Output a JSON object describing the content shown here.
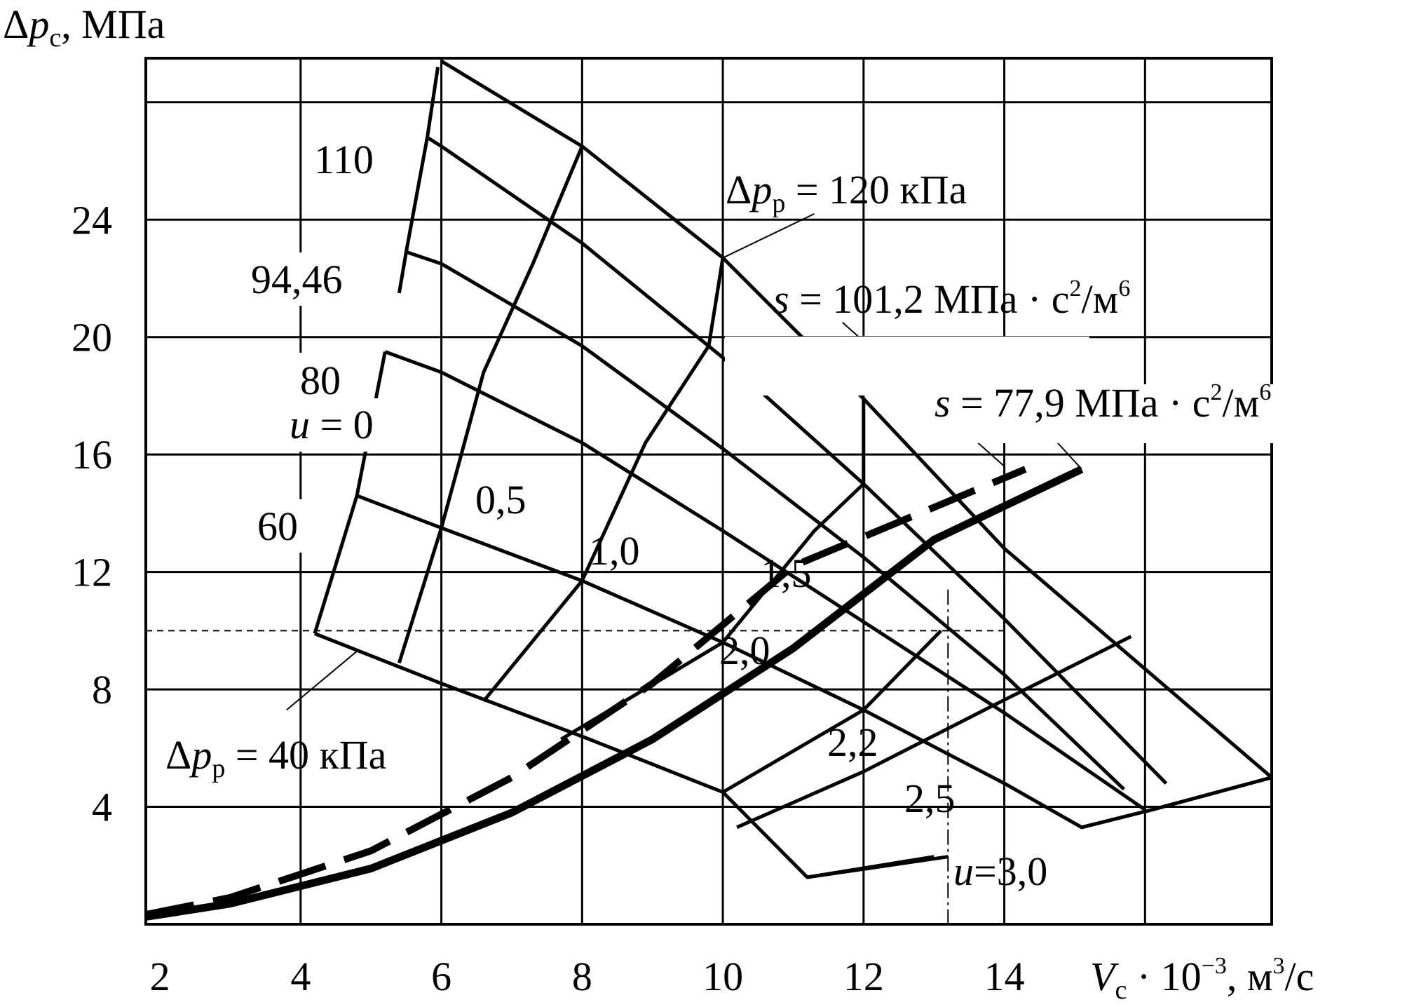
{
  "chart_data": {
    "type": "line",
    "title": "",
    "ylabel": {
      "symbol": "Δp",
      "sub": "с",
      "unit": ", МПа"
    },
    "xlabel": {
      "symbol": "V",
      "sub": "с",
      "mid": " · 10",
      "sup": "−3",
      "unit": ", м",
      "unit_sup": "3",
      "unit_end": "/с"
    },
    "xlim": [
      1.8,
      17.8
    ],
    "ylim": [
      0,
      29.5
    ],
    "grid": true,
    "x_ticks": [
      "2",
      "4",
      "6",
      "8",
      "10",
      "12",
      "14"
    ],
    "x_tick_values": [
      2,
      4,
      6,
      8,
      10,
      12,
      14
    ],
    "y_ticks": [
      "4",
      "8",
      "12",
      "16",
      "20",
      "24"
    ],
    "y_tick_values": [
      4,
      8,
      12,
      16,
      20,
      24
    ],
    "grid_y": [
      4,
      8,
      12,
      16,
      20,
      24,
      28
    ],
    "grid_x": [
      4,
      6,
      8,
      10,
      12,
      14,
      16,
      17.8
    ],
    "pressure_curves": [
      {
        "name": "Δpр = 40 кПа",
        "points": [
          [
            4.2,
            9.9
          ],
          [
            6,
            8.2
          ],
          [
            8,
            6.4
          ],
          [
            10,
            4.5
          ],
          [
            11.2,
            1.6
          ],
          [
            13.2,
            2.3
          ]
        ]
      },
      {
        "name": "60",
        "points": [
          [
            4.8,
            14.6
          ],
          [
            6,
            13.5
          ],
          [
            8,
            11.7
          ],
          [
            10,
            9.6
          ],
          [
            12,
            7.3
          ],
          [
            14,
            4.8
          ],
          [
            15.1,
            3.3
          ],
          [
            16.1,
            3.9
          ],
          [
            17.8,
            5.0
          ]
        ]
      },
      {
        "name": "80",
        "points": [
          [
            5.2,
            19.5
          ],
          [
            6,
            18.8
          ],
          [
            8,
            16.4
          ],
          [
            10,
            13.4
          ],
          [
            12,
            10.3
          ],
          [
            14,
            7.2
          ],
          [
            16,
            3.9
          ]
        ]
      },
      {
        "name": "94,46",
        "points": [
          [
            5.5,
            22.9
          ],
          [
            6,
            22.5
          ],
          [
            8,
            19.7
          ],
          [
            10,
            16.2
          ],
          [
            12,
            12.5
          ],
          [
            14,
            8.5
          ],
          [
            15.7,
            4.6
          ]
        ]
      },
      {
        "name": "110",
        "points": [
          [
            5.8,
            26.8
          ],
          [
            6,
            26.5
          ],
          [
            8,
            23.2
          ],
          [
            10,
            19.3
          ],
          [
            12,
            15.0
          ],
          [
            14,
            10.4
          ],
          [
            16.3,
            4.8
          ]
        ]
      },
      {
        "name": "Δpр = 120 кПа",
        "points": [
          [
            6,
            29.4
          ],
          [
            8,
            26.5
          ],
          [
            10,
            22.7
          ],
          [
            12,
            17.9
          ],
          [
            14,
            12.8
          ],
          [
            17.8,
            5.0
          ]
        ]
      }
    ],
    "u_curves": [
      {
        "name": "u = 0",
        "points": [
          [
            4.2,
            9.9
          ],
          [
            4.8,
            14.6
          ],
          [
            5.2,
            19.5
          ]
        ]
      },
      {
        "name": "u = 0 (upper)",
        "points": [
          [
            5.4,
            21.5
          ],
          [
            5.5,
            22.9
          ],
          [
            5.8,
            26.8
          ],
          [
            5.95,
            29.2
          ]
        ]
      },
      {
        "name": "0,5",
        "points": [
          [
            5.4,
            8.9
          ],
          [
            6,
            13.5
          ],
          [
            6.6,
            18.8
          ],
          [
            7.3,
            22.5
          ],
          [
            8,
            26.5
          ]
        ]
      },
      {
        "name": "1,0",
        "points": [
          [
            6.6,
            7.6
          ],
          [
            8,
            11.7
          ],
          [
            8.9,
            16.4
          ],
          [
            9.8,
            19.7
          ],
          [
            10,
            22.7
          ]
        ]
      },
      {
        "name": "1,5",
        "points": [
          [
            7.7,
            6.3
          ],
          [
            10,
            9.6
          ],
          [
            11.3,
            13.4
          ],
          [
            12,
            15.0
          ],
          [
            12,
            17.9
          ]
        ]
      },
      {
        "name": "2,0",
        "points": [
          [
            10,
            4.5
          ],
          [
            12,
            7.3
          ],
          [
            13.1,
            10.0
          ]
        ]
      },
      {
        "name": "2,2",
        "points": [
          [
            10.2,
            3.3
          ],
          [
            12,
            5.2
          ],
          [
            13.8,
            7.4
          ],
          [
            15.8,
            9.8
          ]
        ]
      },
      {
        "name": "2,5",
        "points": [
          [
            11.2,
            1.6
          ],
          [
            13,
            2.3
          ]
        ]
      },
      {
        "name": "u=3,0",
        "points": [
          [
            15.1,
            3.3
          ],
          [
            16.1,
            3.9
          ],
          [
            17.8,
            5.0
          ]
        ]
      }
    ],
    "system_curves": [
      {
        "name": "s = 77,9 МПа · с²/м⁶",
        "style": "solid-thick",
        "points": [
          [
            1.8,
            0.25
          ],
          [
            3,
            0.7
          ],
          [
            5,
            1.9
          ],
          [
            7,
            3.8
          ],
          [
            9,
            6.3
          ],
          [
            11,
            9.4
          ],
          [
            13,
            13.1
          ],
          [
            15.1,
            15.5
          ]
        ]
      },
      {
        "name": "s = 101,2 МПа · с²/м⁶",
        "style": "dashed-thick",
        "points": [
          [
            1.8,
            0.33
          ],
          [
            3,
            0.91
          ],
          [
            5,
            2.5
          ],
          [
            7,
            5.0
          ],
          [
            9,
            8.2
          ],
          [
            11,
            12.2
          ],
          [
            14.3,
            15.5
          ]
        ]
      }
    ],
    "operating_point": {
      "x": 13.2,
      "y": 10.0
    },
    "value_labels": [
      "110",
      "94,46",
      "80",
      "u = 0",
      "60",
      "0,5",
      "1,0",
      "1,5",
      "2,0",
      "2,2",
      "2,5",
      "u=3,0"
    ],
    "annotations": {
      "top_curve": {
        "symbol": "Δp",
        "sub": "р",
        "text": " = 120 кПа"
      },
      "bottom_curve": {
        "symbol": "Δp",
        "sub": "р",
        "text": " = 40 кПа"
      },
      "s_high": {
        "symbol": "s",
        "text": " = 101,2 МПа · с",
        "sup1": "2",
        "text2": "/м",
        "sup2": "6"
      },
      "s_low": {
        "symbol": "s",
        "text": " = 77,9 МПа · с",
        "sup1": "2",
        "text2": "/м",
        "sup2": "6"
      }
    }
  }
}
